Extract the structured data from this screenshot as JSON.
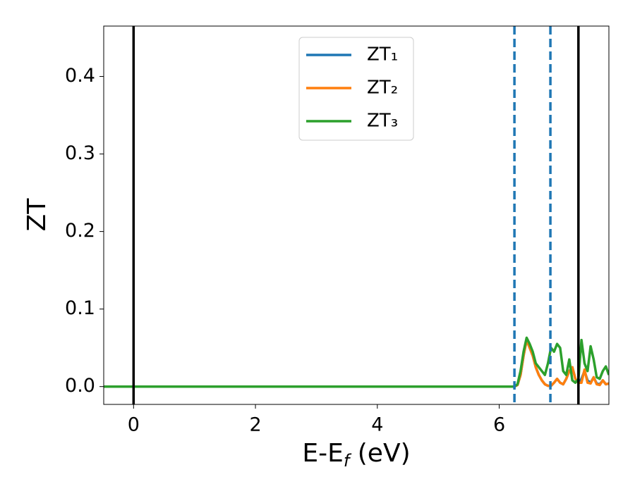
{
  "chart_data": {
    "type": "line",
    "xlabel": [
      "E-E",
      "f",
      " (eV)"
    ],
    "ylabel": "ZT",
    "x": [
      -0.49,
      6.2,
      6.25,
      6.3,
      6.35,
      6.4,
      6.45,
      6.5,
      6.55,
      6.6,
      6.65,
      6.7,
      6.75,
      6.8,
      6.85,
      6.9,
      6.95,
      7.0,
      7.05,
      7.1,
      7.15,
      7.2,
      7.25,
      7.3,
      7.35,
      7.4,
      7.45,
      7.5,
      7.55,
      7.6,
      7.65,
      7.7,
      7.75,
      7.8
    ],
    "series": [
      {
        "name": "ZT₁",
        "color": "#1f77b4",
        "values": [
          0,
          0,
          0,
          0.002,
          0.015,
          0.04,
          0.06,
          0.05,
          0.04,
          0.025,
          0.015,
          0.008,
          0.003,
          0.001,
          0.001,
          0.005,
          0.01,
          0.005,
          0.003,
          0.01,
          0.02,
          0.025,
          0.01,
          0.005,
          0.01,
          0.02,
          0.008,
          0.005,
          0.012,
          0.004,
          0.003,
          0.008,
          0.003,
          0.004
        ]
      },
      {
        "name": "ZT₂",
        "color": "#ff7f0e",
        "values": [
          0,
          0,
          0,
          0.002,
          0.015,
          0.04,
          0.06,
          0.05,
          0.04,
          0.025,
          0.015,
          0.008,
          0.003,
          0.001,
          0.001,
          0.005,
          0.01,
          0.005,
          0.003,
          0.01,
          0.02,
          0.025,
          0.01,
          0.005,
          0.005,
          0.022,
          0.005,
          0.004,
          0.012,
          0.003,
          0.002,
          0.008,
          0.003,
          0.004
        ]
      },
      {
        "name": "ZT₃",
        "color": "#2ca02c",
        "values": [
          0,
          0,
          0,
          0.003,
          0.02,
          0.045,
          0.063,
          0.055,
          0.045,
          0.03,
          0.025,
          0.02,
          0.015,
          0.03,
          0.05,
          0.045,
          0.055,
          0.05,
          0.02,
          0.015,
          0.035,
          0.008,
          0.005,
          0.01,
          0.06,
          0.03,
          0.02,
          0.052,
          0.035,
          0.012,
          0.01,
          0.02,
          0.026,
          0.015
        ]
      }
    ],
    "vlines": [
      {
        "x": 0,
        "color": "#000000",
        "style": "solid"
      },
      {
        "x": 7.3,
        "color": "#000000",
        "style": "solid"
      },
      {
        "x": 6.25,
        "color": "#1f77b4",
        "style": "dashed"
      },
      {
        "x": 6.84,
        "color": "#1f77b4",
        "style": "dashed"
      }
    ],
    "xlim": [
      -0.49,
      7.8
    ],
    "xticks": [
      0,
      2,
      4,
      6
    ],
    "ylim": [
      -0.023,
      0.465
    ],
    "yticks": [
      {
        "value": 0,
        "label": "0.0"
      },
      0.1,
      0.2,
      0.3,
      0.4
    ],
    "legend": "upper center"
  }
}
